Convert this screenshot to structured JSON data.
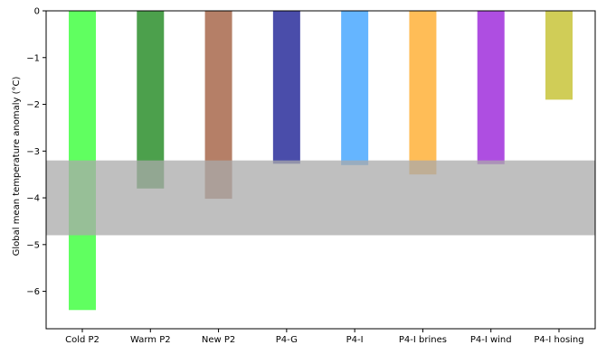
{
  "chart_data": {
    "type": "bar",
    "title": "",
    "xlabel": "",
    "ylabel": "Global mean temperature anomaly (°C)",
    "ylim": [
      -6.8,
      0
    ],
    "yticks": [
      0,
      -1,
      -2,
      -3,
      -4,
      -5,
      -6
    ],
    "ytick_labels": [
      "0",
      "−1",
      "−2",
      "−3",
      "−4",
      "−5",
      "−6"
    ],
    "grid": false,
    "categories": [
      "Cold P2",
      "Warm P2",
      "New P2",
      "P4-G",
      "P4-I",
      "P4-I brines",
      "P4-I wind",
      "P4-I hosing"
    ],
    "values": [
      -6.4,
      -3.8,
      -4.02,
      -3.27,
      -3.3,
      -3.5,
      -3.28,
      -1.9
    ],
    "colors": [
      "#44ff44",
      "#2d8f2d",
      "#a8694c",
      "#2a2e9b",
      "#4aa8ff",
      "#ffb13a",
      "#a02fdc",
      "#c8c43a"
    ],
    "bar_alpha": 0.85,
    "shaded_band": {
      "y_range": [
        -4.8,
        -3.2
      ],
      "color": "#a9a9a9",
      "alpha": 0.75
    }
  }
}
